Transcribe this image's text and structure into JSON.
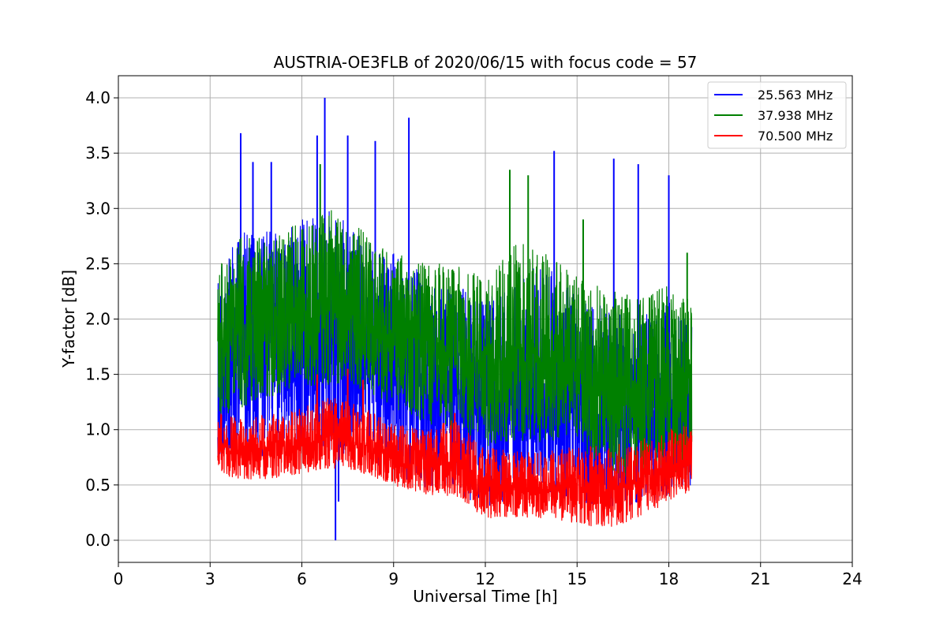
{
  "chart_data": {
    "type": "line",
    "title": "AUSTRIA-OE3FLB of 2020/06/15 with focus code = 57",
    "xlabel": "Universal Time [h]",
    "ylabel": "Y-factor [dB]",
    "xlim": [
      0,
      24
    ],
    "ylim": [
      -0.2,
      4.2
    ],
    "xticks": [
      0,
      3,
      6,
      9,
      12,
      15,
      18,
      21,
      24
    ],
    "yticks": [
      0.0,
      0.5,
      1.0,
      1.5,
      2.0,
      2.5,
      3.0,
      3.5,
      4.0
    ],
    "xtick_labels": [
      "0",
      "3",
      "6",
      "9",
      "12",
      "15",
      "18",
      "21",
      "24"
    ],
    "ytick_labels": [
      "0.0",
      "0.5",
      "1.0",
      "1.5",
      "2.0",
      "2.5",
      "3.0",
      "3.5",
      "4.0"
    ],
    "grid": true,
    "legend_position": "top-right",
    "x_range_of_data": [
      3.25,
      18.75
    ],
    "series": [
      {
        "name": "25.563 MHz",
        "color": "#0000ff",
        "envelope": {
          "x": [
            3.25,
            4,
            5,
            6,
            7,
            8,
            9,
            10,
            11,
            12,
            13,
            14,
            15,
            16,
            17,
            18,
            18.75
          ],
          "low": [
            0.65,
            0.7,
            0.75,
            0.8,
            0.8,
            0.75,
            0.6,
            0.45,
            0.4,
            0.3,
            0.35,
            0.4,
            0.35,
            0.3,
            0.3,
            0.4,
            0.5
          ],
          "high": [
            2.5,
            2.8,
            2.8,
            2.9,
            3.0,
            2.7,
            2.6,
            2.4,
            2.3,
            2.2,
            2.4,
            2.5,
            2.2,
            2.1,
            2.0,
            2.2,
            2.0
          ]
        },
        "spikes": [
          [
            4.0,
            3.68
          ],
          [
            4.4,
            3.42
          ],
          [
            5.0,
            3.42
          ],
          [
            6.5,
            3.66
          ],
          [
            6.75,
            4.0
          ],
          [
            7.5,
            3.66
          ],
          [
            8.4,
            3.61
          ],
          [
            9.5,
            3.82
          ],
          [
            14.25,
            3.52
          ],
          [
            16.2,
            3.45
          ],
          [
            17.0,
            3.4
          ],
          [
            18.0,
            3.3
          ],
          [
            7.1,
            0.0
          ],
          [
            7.2,
            0.35
          ]
        ]
      },
      {
        "name": "37.938 MHz",
        "color": "#008000",
        "envelope": {
          "x": [
            3.25,
            4,
            5,
            6,
            7,
            8,
            9,
            10,
            11,
            12,
            13,
            14,
            15,
            16,
            17,
            18,
            18.75
          ],
          "low": [
            1.1,
            1.2,
            1.3,
            1.4,
            1.4,
            1.35,
            1.2,
            1.05,
            1.0,
            0.85,
            0.85,
            0.9,
            0.8,
            0.65,
            0.5,
            0.55,
            0.6
          ],
          "high": [
            2.5,
            2.75,
            2.75,
            2.9,
            3.0,
            2.8,
            2.6,
            2.5,
            2.5,
            2.4,
            2.7,
            2.6,
            2.4,
            2.3,
            2.2,
            2.3,
            2.2
          ]
        },
        "spikes": [
          [
            6.6,
            3.4
          ],
          [
            12.8,
            3.35
          ],
          [
            13.4,
            3.3
          ],
          [
            15.2,
            2.9
          ],
          [
            18.6,
            2.6
          ]
        ]
      },
      {
        "name": "70.500 MHz",
        "color": "#ff0000",
        "envelope": {
          "x": [
            3.25,
            4,
            5,
            6,
            7,
            8,
            9,
            10,
            11,
            12,
            13,
            14,
            15,
            16,
            17,
            18,
            18.75
          ],
          "low": [
            0.6,
            0.55,
            0.55,
            0.6,
            0.65,
            0.6,
            0.5,
            0.4,
            0.4,
            0.2,
            0.2,
            0.2,
            0.15,
            0.1,
            0.2,
            0.35,
            0.45
          ],
          "high": [
            1.15,
            1.1,
            1.15,
            1.2,
            1.3,
            1.2,
            1.05,
            1.0,
            1.1,
            0.85,
            0.8,
            0.8,
            0.85,
            0.85,
            0.9,
            1.0,
            1.05
          ]
        },
        "spikes": [
          [
            6.5,
            1.5
          ],
          [
            7.5,
            1.55
          ],
          [
            8.0,
            1.45
          ],
          [
            11.0,
            1.15
          ]
        ]
      }
    ]
  }
}
